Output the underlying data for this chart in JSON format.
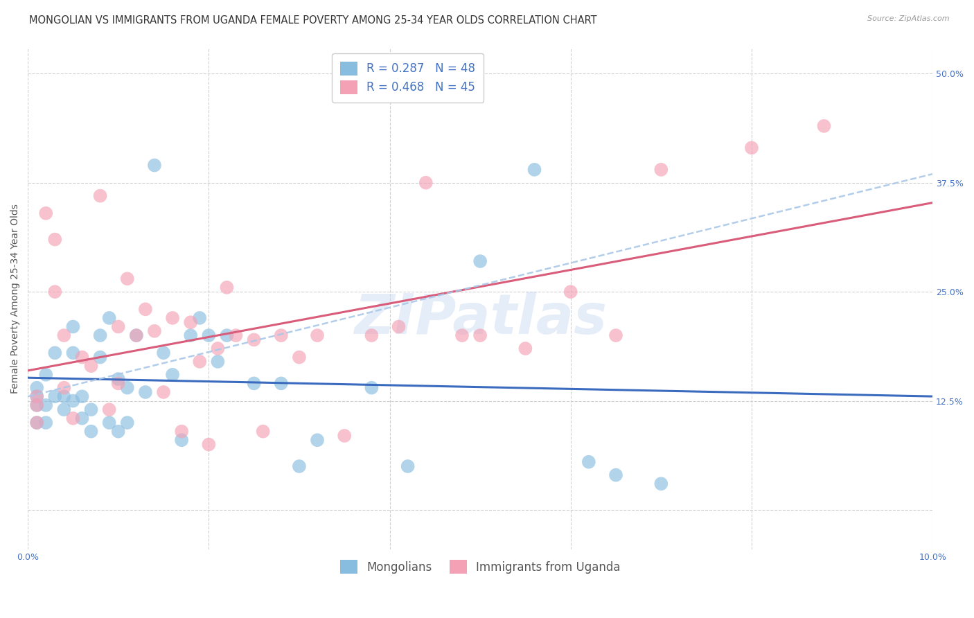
{
  "title": "MONGOLIAN VS IMMIGRANTS FROM UGANDA FEMALE POVERTY AMONG 25-34 YEAR OLDS CORRELATION CHART",
  "source": "Source: ZipAtlas.com",
  "ylabel": "Female Poverty Among 25-34 Year Olds",
  "xlim": [
    0.0,
    0.1
  ],
  "ylim": [
    -0.045,
    0.53
  ],
  "xtick_positions": [
    0.0,
    0.02,
    0.04,
    0.06,
    0.08,
    0.1
  ],
  "xtick_labels": [
    "0.0%",
    "",
    "",
    "",
    "",
    "10.0%"
  ],
  "ytick_positions": [
    0.0,
    0.125,
    0.25,
    0.375,
    0.5
  ],
  "ytick_labels": [
    "",
    "12.5%",
    "25.0%",
    "37.5%",
    "50.0%"
  ],
  "watermark": "ZIPatlas",
  "mongolian_color": "#89bde0",
  "uganda_color": "#f4a0b5",
  "mongolian_line_color": "#3a6bbf",
  "uganda_line_color": "#d95c7a",
  "dashed_line_color": "#aac8e8",
  "mongolian_R": 0.287,
  "mongolian_N": 48,
  "uganda_R": 0.468,
  "uganda_N": 45,
  "mongolian_x": [
    0.001,
    0.001,
    0.001,
    0.001,
    0.002,
    0.002,
    0.002,
    0.003,
    0.003,
    0.004,
    0.004,
    0.005,
    0.005,
    0.005,
    0.006,
    0.006,
    0.007,
    0.007,
    0.008,
    0.008,
    0.009,
    0.009,
    0.01,
    0.01,
    0.011,
    0.011,
    0.012,
    0.013,
    0.014,
    0.015,
    0.016,
    0.017,
    0.018,
    0.019,
    0.02,
    0.021,
    0.022,
    0.025,
    0.028,
    0.03,
    0.032,
    0.038,
    0.042,
    0.05,
    0.056,
    0.062,
    0.065,
    0.07
  ],
  "mongolian_y": [
    0.13,
    0.14,
    0.1,
    0.12,
    0.155,
    0.12,
    0.1,
    0.18,
    0.13,
    0.13,
    0.115,
    0.21,
    0.125,
    0.18,
    0.105,
    0.13,
    0.09,
    0.115,
    0.2,
    0.175,
    0.1,
    0.22,
    0.09,
    0.15,
    0.1,
    0.14,
    0.2,
    0.135,
    0.395,
    0.18,
    0.155,
    0.08,
    0.2,
    0.22,
    0.2,
    0.17,
    0.2,
    0.145,
    0.145,
    0.05,
    0.08,
    0.14,
    0.05,
    0.285,
    0.39,
    0.055,
    0.04,
    0.03
  ],
  "uganda_x": [
    0.001,
    0.001,
    0.001,
    0.002,
    0.003,
    0.003,
    0.004,
    0.004,
    0.005,
    0.006,
    0.007,
    0.008,
    0.009,
    0.01,
    0.01,
    0.011,
    0.012,
    0.013,
    0.014,
    0.015,
    0.016,
    0.017,
    0.018,
    0.019,
    0.02,
    0.021,
    0.022,
    0.023,
    0.025,
    0.026,
    0.028,
    0.03,
    0.032,
    0.035,
    0.038,
    0.041,
    0.044,
    0.048,
    0.05,
    0.055,
    0.06,
    0.065,
    0.07,
    0.08,
    0.088
  ],
  "uganda_y": [
    0.13,
    0.12,
    0.1,
    0.34,
    0.31,
    0.25,
    0.14,
    0.2,
    0.105,
    0.175,
    0.165,
    0.36,
    0.115,
    0.145,
    0.21,
    0.265,
    0.2,
    0.23,
    0.205,
    0.135,
    0.22,
    0.09,
    0.215,
    0.17,
    0.075,
    0.185,
    0.255,
    0.2,
    0.195,
    0.09,
    0.2,
    0.175,
    0.2,
    0.085,
    0.2,
    0.21,
    0.375,
    0.2,
    0.2,
    0.185,
    0.25,
    0.2,
    0.39,
    0.415,
    0.44
  ],
  "background_color": "#ffffff",
  "grid_color": "#d0d0d0",
  "title_fontsize": 10.5,
  "axis_label_fontsize": 10,
  "tick_fontsize": 9,
  "legend_fontsize": 12
}
